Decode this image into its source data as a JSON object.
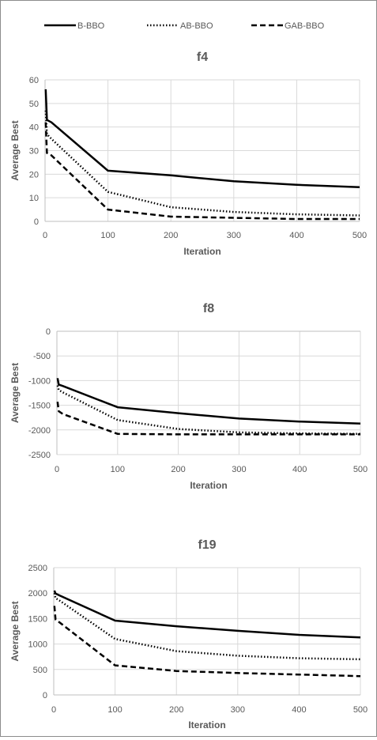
{
  "legend": {
    "items": [
      {
        "label": "B-BBO",
        "style": "solid"
      },
      {
        "label": "AB-BBO",
        "style": "dotted"
      },
      {
        "label": "GAB-BBO",
        "style": "dashed"
      }
    ]
  },
  "chart_data": [
    {
      "type": "line",
      "title": "f4",
      "xlabel": "Iteration",
      "ylabel": "Average Best",
      "xlim": [
        0,
        500
      ],
      "ylim": [
        0,
        60
      ],
      "xticks": [
        0,
        100,
        200,
        300,
        400,
        500
      ],
      "yticks": [
        0,
        10,
        20,
        30,
        40,
        50,
        60
      ],
      "grid": true,
      "series": [
        {
          "name": "B-BBO",
          "style": "solid",
          "x": [
            1,
            3,
            10,
            100,
            200,
            300,
            400,
            500
          ],
          "y": [
            56,
            43,
            42,
            21.5,
            19.5,
            17,
            15.5,
            14.5
          ]
        },
        {
          "name": "AB-BBO",
          "style": "dotted",
          "x": [
            1,
            3,
            10,
            100,
            200,
            300,
            400,
            500
          ],
          "y": [
            47,
            37,
            35,
            12.5,
            6,
            4,
            3,
            2.5
          ]
        },
        {
          "name": "GAB-BBO",
          "style": "dashed",
          "x": [
            1,
            3,
            10,
            100,
            200,
            300,
            400,
            500
          ],
          "y": [
            42,
            29,
            28,
            5,
            2,
            1.5,
            1,
            1
          ]
        }
      ]
    },
    {
      "type": "line",
      "title": "f8",
      "xlabel": "Iteration",
      "ylabel": "Average Best",
      "xlim": [
        0,
        500
      ],
      "ylim": [
        -2500,
        0
      ],
      "xticks": [
        0,
        100,
        200,
        300,
        400,
        500
      ],
      "yticks": [
        -2500,
        -2000,
        -1500,
        -1000,
        -500,
        0
      ],
      "grid": true,
      "series": [
        {
          "name": "B-BBO",
          "style": "solid",
          "x": [
            1,
            3,
            10,
            100,
            200,
            300,
            400,
            500
          ],
          "y": [
            -950,
            -1080,
            -1110,
            -1540,
            -1660,
            -1770,
            -1830,
            -1870
          ]
        },
        {
          "name": "AB-BBO",
          "style": "dotted",
          "x": [
            1,
            3,
            10,
            100,
            200,
            300,
            400,
            500
          ],
          "y": [
            -1100,
            -1190,
            -1240,
            -1800,
            -1980,
            -2050,
            -2070,
            -2080
          ]
        },
        {
          "name": "GAB-BBO",
          "style": "dashed",
          "x": [
            1,
            3,
            10,
            100,
            200,
            300,
            400,
            500
          ],
          "y": [
            -1430,
            -1620,
            -1680,
            -2080,
            -2090,
            -2090,
            -2090,
            -2090
          ]
        }
      ]
    },
    {
      "type": "line",
      "title": "f19",
      "xlabel": "Iteration",
      "ylabel": "Average Best",
      "xlim": [
        0,
        500
      ],
      "ylim": [
        0,
        2500
      ],
      "xticks": [
        0,
        100,
        200,
        300,
        400,
        500
      ],
      "yticks": [
        0,
        500,
        1000,
        1500,
        2000,
        2500
      ],
      "grid": true,
      "series": [
        {
          "name": "B-BBO",
          "style": "solid",
          "x": [
            1,
            3,
            10,
            100,
            200,
            300,
            400,
            500
          ],
          "y": [
            2050,
            1990,
            1950,
            1460,
            1350,
            1260,
            1180,
            1130
          ]
        },
        {
          "name": "AB-BBO",
          "style": "dotted",
          "x": [
            1,
            3,
            10,
            100,
            200,
            300,
            400,
            500
          ],
          "y": [
            2000,
            1900,
            1850,
            1100,
            860,
            770,
            720,
            700
          ]
        },
        {
          "name": "GAB-BBO",
          "style": "dashed",
          "x": [
            1,
            3,
            10,
            100,
            200,
            300,
            400,
            500
          ],
          "y": [
            1750,
            1480,
            1420,
            580,
            470,
            430,
            400,
            370
          ]
        }
      ]
    }
  ]
}
